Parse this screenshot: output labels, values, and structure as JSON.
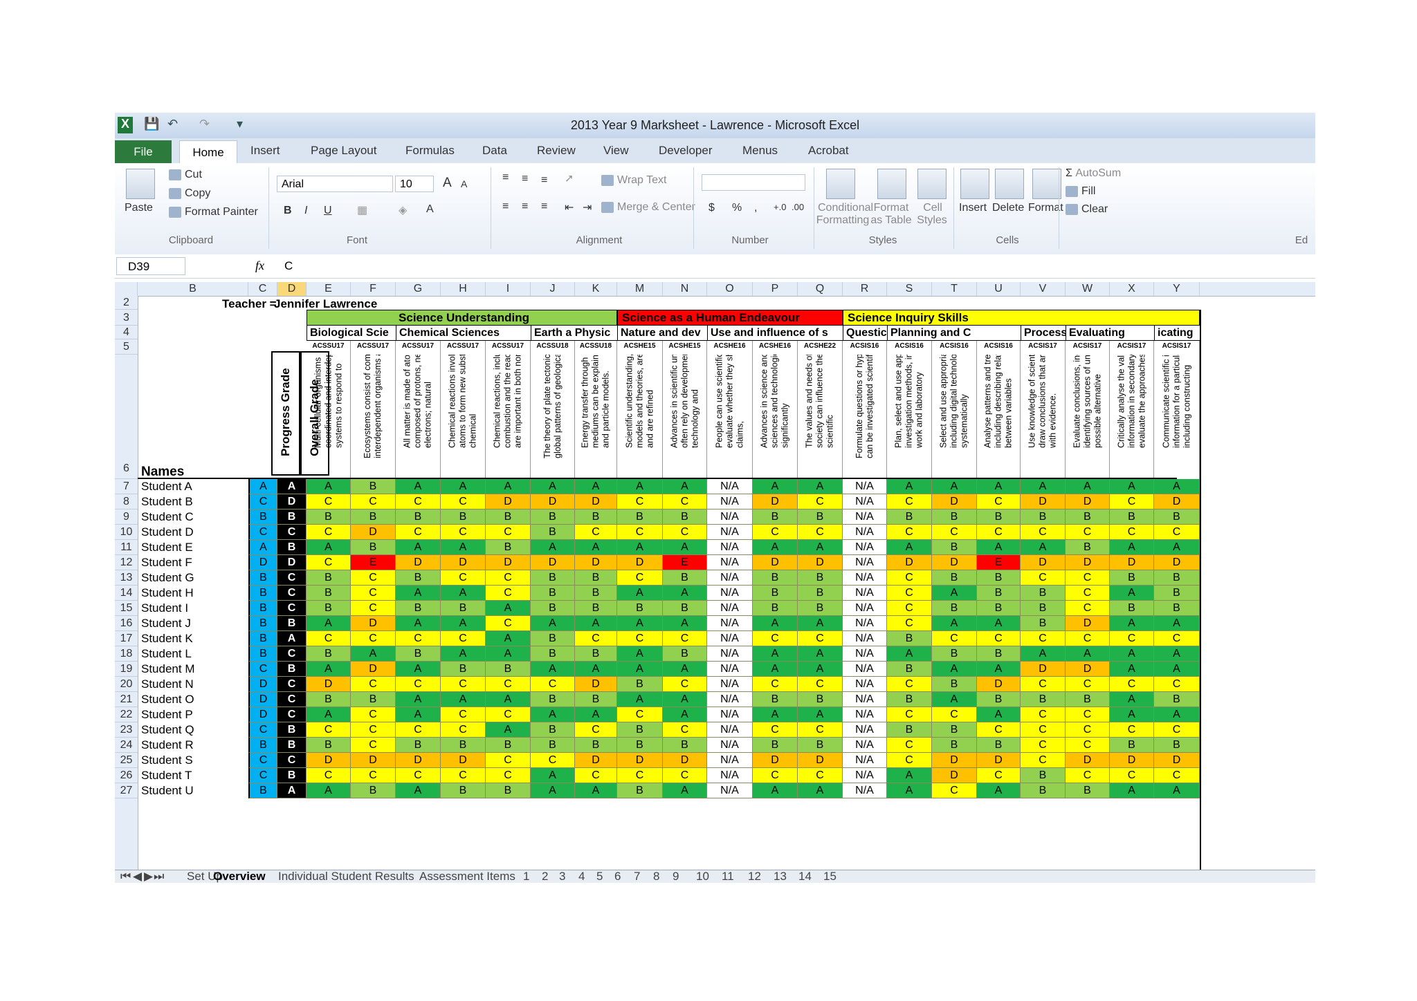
{
  "window": {
    "title": "2013 Year 9 Marksheet - Lawrence  -  Microsoft Excel"
  },
  "ribbon_tabs": [
    "File",
    "Home",
    "Insert",
    "Page Layout",
    "Formulas",
    "Data",
    "Review",
    "View",
    "Developer",
    "Menus",
    "Acrobat"
  ],
  "ribbon": {
    "paste": "Paste",
    "cut": "Cut",
    "copy": "Copy",
    "format_painter": "Format Painter",
    "clipboard": "Clipboard",
    "font_name": "Arial",
    "font_size": "10",
    "font": "Font",
    "wrap_text": "Wrap Text",
    "merge_center": "Merge & Center",
    "alignment": "Alignment",
    "currency": "$",
    "percent": "%",
    "comma": ",",
    "number": "Number",
    "cond_fmt_1": "Conditional",
    "cond_fmt_2": "Formatting",
    "fmt_table_1": "Format",
    "fmt_table_2": "as Table",
    "cell_styles_1": "Cell",
    "cell_styles_2": "Styles",
    "styles": "Styles",
    "insert": "Insert",
    "delete": "Delete",
    "format": "Format",
    "cells": "Cells",
    "autosum": "AutoSum",
    "fill": "Fill",
    "clear": "Clear",
    "editing": "Ed",
    "bold": "B",
    "italic": "I",
    "underline": "U",
    "grow": "A",
    "shrink": "A"
  },
  "formula_bar": {
    "name_box": "D39",
    "fx": "fx",
    "value": "C"
  },
  "columns": [
    "B",
    "C",
    "D",
    "E",
    "F",
    "G",
    "H",
    "I",
    "J",
    "K",
    "M",
    "N",
    "O",
    "P",
    "Q",
    "R",
    "S",
    "T",
    "U",
    "V",
    "W",
    "X",
    "Y"
  ],
  "row_numbers": [
    "2",
    "3",
    "4",
    "5",
    "6",
    "7",
    "8",
    "9",
    "10",
    "11",
    "12",
    "13",
    "14",
    "15",
    "16",
    "17",
    "18",
    "19",
    "20",
    "21",
    "22",
    "23",
    "24",
    "25",
    "26",
    "27"
  ],
  "teacher_label": "Teacher =",
  "teacher_name": "Jennifer Lawrence",
  "names_header": "Names",
  "progress_header": "Progress Grade",
  "overall_header": "Overall Grade",
  "strands": [
    {
      "label": "Science Understanding",
      "color": "#92d050"
    },
    {
      "label": "Science as a Human Endeavour",
      "color": "#ff0000"
    },
    {
      "label": "Science Inquiry Skills",
      "color": "#ffff00"
    }
  ],
  "substrands": [
    "Biological Scie",
    "Chemical Sciences",
    "Earth a Physic",
    "Nature and dev",
    "Use and influence of s",
    "Questic",
    "Planning and C",
    "Processing and",
    "Evaluating",
    "icating"
  ],
  "codes": [
    "ACSSU17",
    "ACSSU17",
    "ACSSU17",
    "ACSSU17",
    "ACSSU17",
    "ACSSU18",
    "ACSSU18",
    "ACSHE15",
    "ACSHE15",
    "ACSHE16",
    "ACSHE16",
    "ACSHE22",
    "ACSIS16",
    "ACSIS16",
    "ACSIS16",
    "ACSIS16",
    "ACSIS17",
    "ACSIS17",
    "ACSIS17",
    "ACSIS17"
  ],
  "descriptors": [
    "Multi-cellular organisms rely on coordinated and interdependent internal systems to respond to",
    "Ecosystems consist of communities of interdependent organisms and abiotic",
    "All matter is made of atoms which are composed of protons, neutrons and electrons; natural",
    "Chemical reactions involve rearranging atoms to form new substances; during a chemical",
    "Chemical reactions, including combustion and the reactions of acids, are important in both non-",
    "The theory of plate tectonics explains global patterns of geological activity and",
    "Energy transfer through different mediums can be explained using wave and particle models.",
    "Scientific understanding, including models and theories, are contestable and are refined",
    "Advances in scientific understanding often rely on developments in technology and",
    "People can use scientific knowledge to evaluate whether they should accept claims,",
    "Advances in science and emerging sciences and technologies can significantly",
    "The values and needs of contemporary society can influence the focus of scientific",
    "Formulate questions or hypotheses that can be investigated scientifically",
    "Plan, select and use appropriate investigation methods, including field work and laboratory",
    "Select and use appropriate equipment, including digital technologies, to systematically",
    "Analyse patterns and trends in data, including describing relationships between variables",
    "Use knowledge of scientific concepts to draw conclusions that are consistent with evidence.",
    "Evaluate conclusions, including identifying sources of uncertainty and possible alternative",
    "Critically analyse the validity of information in secondary sources and evaluate the approaches",
    "Communicate scientific ideas and information for a particular purpose, including constructing"
  ],
  "students": [
    {
      "name": "Student A",
      "progress": "A",
      "overall": "A",
      "grades": [
        "A",
        "B",
        "A",
        "A",
        "A",
        "A",
        "A",
        "A",
        "A",
        "N/A",
        "A",
        "A",
        "N/A",
        "A",
        "A",
        "A",
        "A",
        "A",
        "A",
        "A"
      ]
    },
    {
      "name": "Student B",
      "progress": "C",
      "overall": "D",
      "grades": [
        "C",
        "C",
        "C",
        "C",
        "D",
        "D",
        "D",
        "C",
        "C",
        "N/A",
        "D",
        "C",
        "N/A",
        "C",
        "D",
        "C",
        "D",
        "D",
        "C",
        "D"
      ]
    },
    {
      "name": "Student C",
      "progress": "B",
      "overall": "B",
      "grades": [
        "B",
        "B",
        "B",
        "B",
        "B",
        "B",
        "B",
        "B",
        "B",
        "N/A",
        "B",
        "B",
        "N/A",
        "B",
        "B",
        "B",
        "B",
        "B",
        "B",
        "B"
      ]
    },
    {
      "name": "Student D",
      "progress": "C",
      "overall": "C",
      "grades": [
        "C",
        "D",
        "C",
        "C",
        "C",
        "B",
        "C",
        "C",
        "C",
        "N/A",
        "C",
        "C",
        "N/A",
        "C",
        "C",
        "C",
        "C",
        "C",
        "C",
        "C"
      ]
    },
    {
      "name": "Student E",
      "progress": "A",
      "overall": "B",
      "grades": [
        "A",
        "B",
        "A",
        "A",
        "B",
        "A",
        "A",
        "A",
        "A",
        "N/A",
        "A",
        "A",
        "N/A",
        "A",
        "B",
        "A",
        "A",
        "B",
        "A",
        "A"
      ]
    },
    {
      "name": "Student F",
      "progress": "D",
      "overall": "D",
      "grades": [
        "C",
        "E",
        "D",
        "D",
        "D",
        "D",
        "D",
        "D",
        "E",
        "N/A",
        "D",
        "D",
        "N/A",
        "D",
        "D",
        "E",
        "D",
        "D",
        "D",
        "D"
      ]
    },
    {
      "name": "Student G",
      "progress": "B",
      "overall": "C",
      "grades": [
        "B",
        "C",
        "B",
        "C",
        "C",
        "B",
        "B",
        "C",
        "B",
        "N/A",
        "B",
        "B",
        "N/A",
        "C",
        "B",
        "B",
        "C",
        "C",
        "B",
        "B"
      ]
    },
    {
      "name": "Student H",
      "progress": "B",
      "overall": "C",
      "grades": [
        "B",
        "C",
        "A",
        "A",
        "C",
        "B",
        "B",
        "A",
        "A",
        "N/A",
        "B",
        "B",
        "N/A",
        "C",
        "A",
        "B",
        "B",
        "C",
        "A",
        "B"
      ]
    },
    {
      "name": "Student I",
      "progress": "B",
      "overall": "C",
      "grades": [
        "B",
        "C",
        "B",
        "B",
        "A",
        "B",
        "B",
        "B",
        "B",
        "N/A",
        "B",
        "B",
        "N/A",
        "C",
        "B",
        "B",
        "B",
        "C",
        "B",
        "B"
      ]
    },
    {
      "name": "Student J",
      "progress": "B",
      "overall": "B",
      "grades": [
        "A",
        "D",
        "A",
        "A",
        "C",
        "A",
        "A",
        "A",
        "A",
        "N/A",
        "A",
        "A",
        "N/A",
        "C",
        "A",
        "A",
        "B",
        "D",
        "A",
        "A"
      ]
    },
    {
      "name": "Student K",
      "progress": "B",
      "overall": "A",
      "grades": [
        "C",
        "C",
        "C",
        "C",
        "A",
        "B",
        "C",
        "C",
        "C",
        "N/A",
        "C",
        "C",
        "N/A",
        "B",
        "C",
        "C",
        "C",
        "C",
        "C",
        "C"
      ]
    },
    {
      "name": "Student L",
      "progress": "B",
      "overall": "C",
      "grades": [
        "B",
        "A",
        "B",
        "A",
        "A",
        "B",
        "B",
        "A",
        "B",
        "N/A",
        "A",
        "A",
        "N/A",
        "A",
        "B",
        "B",
        "A",
        "A",
        "A",
        "A"
      ]
    },
    {
      "name": "Student M",
      "progress": "C",
      "overall": "B",
      "grades": [
        "A",
        "D",
        "A",
        "B",
        "B",
        "A",
        "A",
        "A",
        "A",
        "N/A",
        "A",
        "A",
        "N/A",
        "B",
        "A",
        "A",
        "D",
        "D",
        "A",
        "A"
      ]
    },
    {
      "name": "Student N",
      "progress": "D",
      "overall": "C",
      "grades": [
        "D",
        "C",
        "C",
        "C",
        "C",
        "C",
        "D",
        "B",
        "C",
        "N/A",
        "C",
        "C",
        "N/A",
        "C",
        "B",
        "D",
        "C",
        "C",
        "C",
        "C"
      ]
    },
    {
      "name": "Student O",
      "progress": "D",
      "overall": "C",
      "grades": [
        "B",
        "B",
        "A",
        "A",
        "A",
        "B",
        "B",
        "A",
        "A",
        "N/A",
        "B",
        "B",
        "N/A",
        "B",
        "A",
        "B",
        "B",
        "B",
        "A",
        "B"
      ]
    },
    {
      "name": "Student P",
      "progress": "D",
      "overall": "C",
      "grades": [
        "A",
        "C",
        "A",
        "C",
        "C",
        "A",
        "A",
        "C",
        "A",
        "N/A",
        "A",
        "A",
        "N/A",
        "C",
        "C",
        "A",
        "C",
        "C",
        "A",
        "A"
      ]
    },
    {
      "name": "Student Q",
      "progress": "C",
      "overall": "B",
      "grades": [
        "C",
        "C",
        "C",
        "C",
        "A",
        "B",
        "C",
        "B",
        "C",
        "N/A",
        "C",
        "C",
        "N/A",
        "B",
        "B",
        "C",
        "C",
        "C",
        "C",
        "C"
      ]
    },
    {
      "name": "Student R",
      "progress": "B",
      "overall": "B",
      "grades": [
        "B",
        "C",
        "B",
        "B",
        "B",
        "B",
        "B",
        "B",
        "B",
        "N/A",
        "B",
        "B",
        "N/A",
        "C",
        "B",
        "B",
        "C",
        "C",
        "B",
        "B"
      ]
    },
    {
      "name": "Student S",
      "progress": "C",
      "overall": "C",
      "grades": [
        "D",
        "D",
        "D",
        "D",
        "C",
        "C",
        "D",
        "D",
        "D",
        "N/A",
        "D",
        "D",
        "N/A",
        "C",
        "D",
        "D",
        "C",
        "D",
        "D",
        "D"
      ]
    },
    {
      "name": "Student T",
      "progress": "C",
      "overall": "B",
      "grades": [
        "C",
        "C",
        "C",
        "C",
        "C",
        "A",
        "C",
        "C",
        "C",
        "N/A",
        "C",
        "C",
        "N/A",
        "A",
        "D",
        "C",
        "B",
        "C",
        "C",
        "C"
      ]
    },
    {
      "name": "Student U",
      "progress": "B",
      "overall": "A",
      "grades": [
        "A",
        "B",
        "A",
        "B",
        "B",
        "A",
        "A",
        "B",
        "A",
        "N/A",
        "A",
        "A",
        "N/A",
        "A",
        "C",
        "A",
        "B",
        "B",
        "A",
        "A"
      ]
    }
  ],
  "grade_colors": {
    "A": "#1fb24a",
    "B": "#92d050",
    "C": "#ffff00",
    "D": "#ffc000",
    "E": "#ff0000",
    "N/A": "#ffffff",
    "progress": "#00b0f0",
    "overall": "#000000"
  },
  "sheet_tabs": [
    "Set Up",
    "Overview",
    "Individual Student Results",
    "Assessment Items",
    "1",
    "2",
    "3",
    "4",
    "5",
    "6",
    "7",
    "8",
    "9",
    "10",
    "11",
    "12",
    "13",
    "14",
    "15"
  ],
  "active_sheet": "Overview"
}
